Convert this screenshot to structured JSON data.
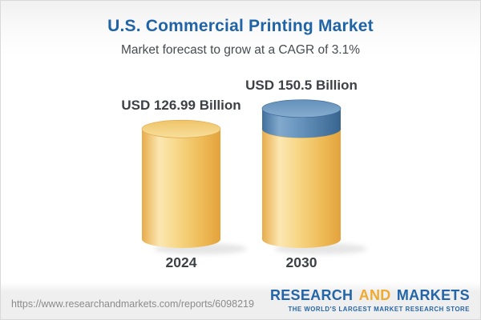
{
  "header": {
    "title": "U.S. Commercial Printing Market",
    "subtitle": "Market forecast to grow at a CAGR of 3.1%"
  },
  "chart_data": {
    "type": "bar",
    "subtype": "3d-cylinder",
    "title": "U.S. Commercial Printing Market",
    "subtitle": "Market forecast to grow at a CAGR of 3.1%",
    "unit": "USD Billion",
    "cagr_percent": 3.1,
    "categories": [
      "2024",
      "2030"
    ],
    "values": [
      126.99,
      150.5
    ],
    "value_labels": [
      "USD 126.99 Billion",
      "USD 150.5 Billion"
    ],
    "bars": [
      {
        "category": "2024",
        "value": 126.99,
        "value_label": "USD 126.99 Billion",
        "segments": [
          {
            "name": "base-2024",
            "value": 126.99,
            "color": "yellow"
          }
        ]
      },
      {
        "category": "2030",
        "value": 150.5,
        "value_label": "USD 150.5 Billion",
        "segments": [
          {
            "name": "base-2024",
            "value": 126.99,
            "color": "yellow"
          },
          {
            "name": "growth-to-2030",
            "value": 23.51,
            "color": "blue"
          }
        ]
      }
    ],
    "colors": {
      "yellow": "#f2c568",
      "blue": "#5d8cb8",
      "label_text": "#3d4145"
    },
    "legend": null,
    "grid": false
  },
  "footer": {
    "url": "https://www.researchandmarkets.com/reports/6098219",
    "logo": {
      "word1": "RESEARCH",
      "word2": "AND",
      "word3": "MARKETS",
      "tagline": "THE WORLD'S LARGEST MARKET RESEARCH STORE",
      "blue": "#2465a8",
      "orange": "#efaa31"
    }
  },
  "colors": {
    "title_blue": "#2064a7",
    "subtitle_text": "#474b4f",
    "background": "#ffffff",
    "footer_band": "#efefef"
  }
}
